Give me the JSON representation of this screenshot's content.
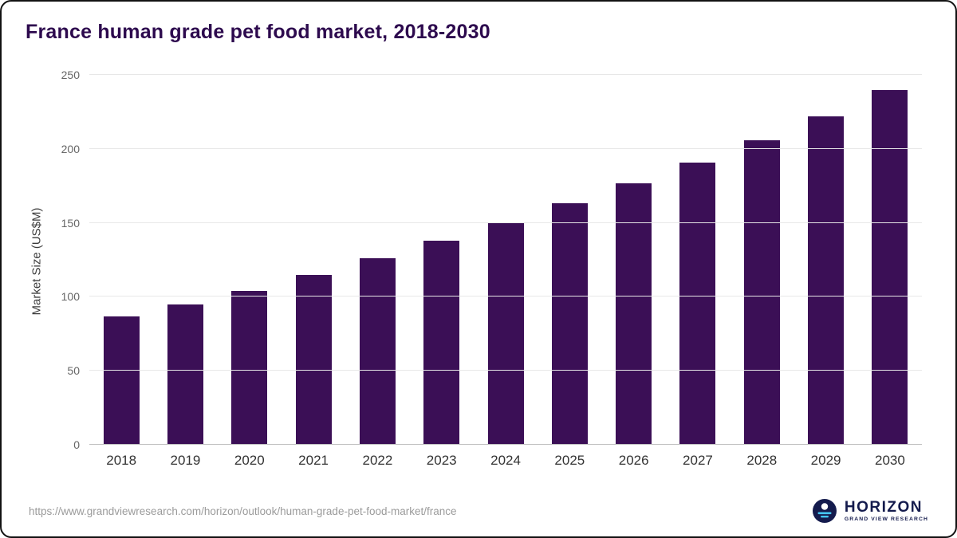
{
  "chart": {
    "title": "France human grade pet food market, 2018-2030",
    "ylabel": "Market Size (US$M)"
  },
  "chart_data": {
    "type": "bar",
    "title": "France human grade pet food market, 2018-2030",
    "categories": [
      "2018",
      "2019",
      "2020",
      "2021",
      "2022",
      "2023",
      "2024",
      "2025",
      "2026",
      "2027",
      "2028",
      "2029",
      "2030"
    ],
    "values": [
      87,
      95,
      104,
      115,
      126,
      138,
      150,
      163,
      177,
      191,
      206,
      222,
      240
    ],
    "xlabel": "",
    "ylabel": "Market Size (US$M)",
    "ylim": [
      0,
      250
    ],
    "yticks": [
      0,
      50,
      100,
      150,
      200,
      250
    ],
    "grid": "horizontal",
    "legend": false,
    "bar_color": "#3b0f56"
  },
  "footer": {
    "source_url": "https://www.grandviewresearch.com/horizon/outlook/human-grade-pet-food-market/france",
    "logo_name": "HORIZON",
    "logo_sub": "GRAND VIEW RESEARCH"
  },
  "colors": {
    "bar": "#3b0f56",
    "title": "#2d0a4e",
    "logo_navy": "#141b4d",
    "logo_blue": "#45c6f2"
  }
}
